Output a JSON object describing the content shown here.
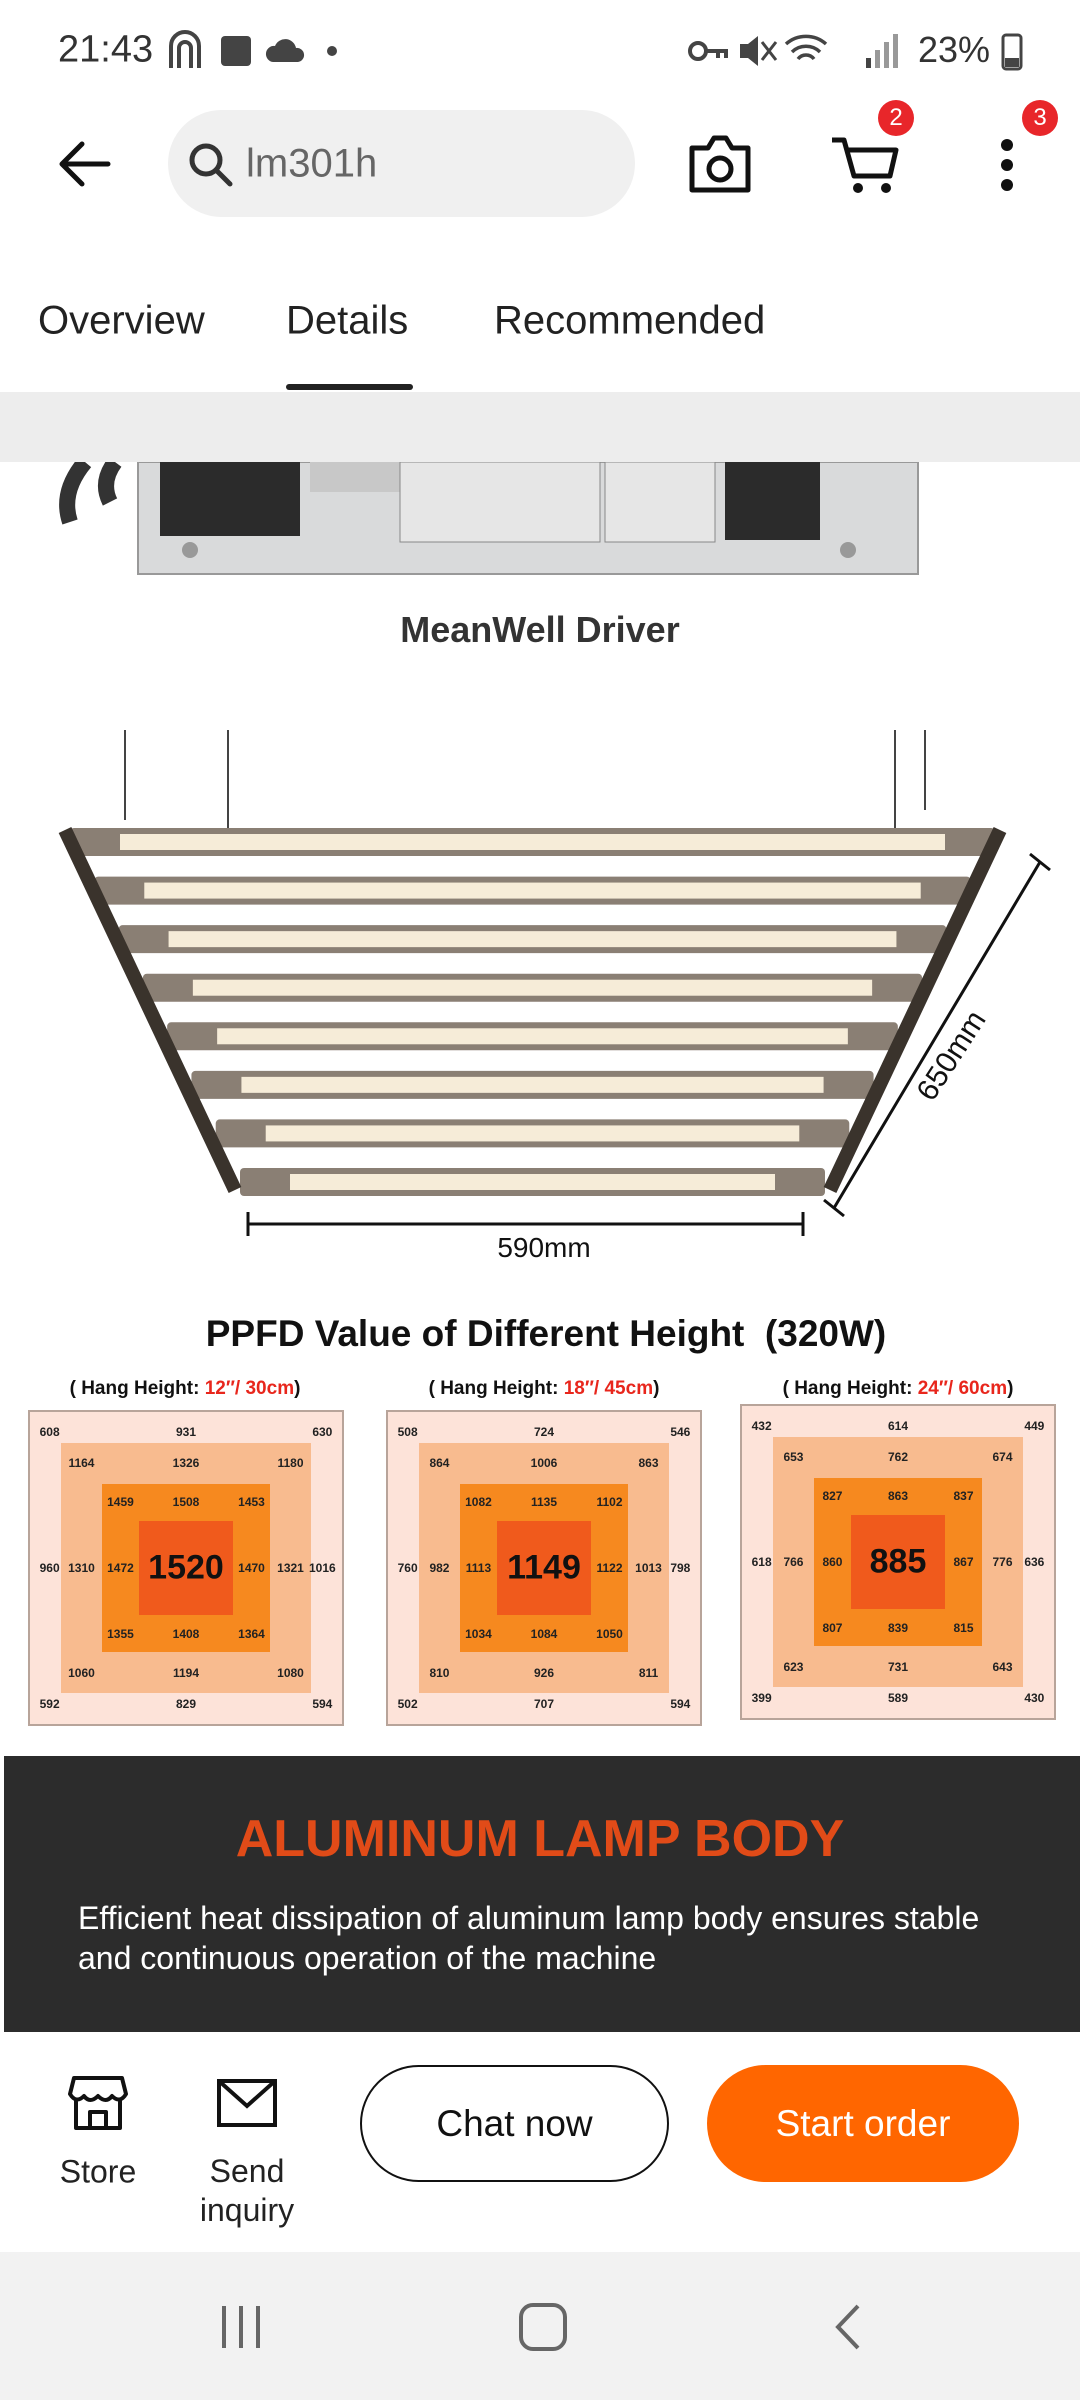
{
  "status_bar": {
    "time": "21:43",
    "battery": "23%"
  },
  "header": {
    "search_query": "lm301h",
    "cart_badge": "2",
    "menu_badge": "3"
  },
  "tabs": [
    "Overview",
    "Details",
    "Recommended"
  ],
  "content": {
    "driver_caption": "MeanWell Driver",
    "lamp_depth": "650mm",
    "lamp_width": "590mm",
    "ppfd": {
      "title": "PPFD Value of Different Height  (320W)",
      "panels": [
        {
          "caption_prefix": "( Hang Height: ",
          "caption_height": "12″/ 30cm",
          "caption_suffix": ")",
          "rings": [
            {
              "top": [
                608,
                931,
                630
              ],
              "left": 960,
              "right": 1016,
              "bottom": [
                592,
                829,
                594
              ]
            },
            {
              "top": [
                1164,
                1326,
                1180
              ],
              "left": 1310,
              "right": 1321,
              "bottom": [
                1060,
                1194,
                1080
              ]
            },
            {
              "top": [
                1459,
                1508,
                1453
              ],
              "left": 1472,
              "right": 1470,
              "bottom": [
                1355,
                1408,
                1364
              ]
            }
          ],
          "center": 1520
        },
        {
          "caption_prefix": "( Hang Height: ",
          "caption_height": "18″/ 45cm",
          "caption_suffix": ")",
          "rings": [
            {
              "top": [
                508,
                724,
                546
              ],
              "left": 760,
              "right": 798,
              "bottom": [
                502,
                707,
                594
              ]
            },
            {
              "top": [
                864,
                1006,
                863
              ],
              "left": 982,
              "right": 1013,
              "bottom": [
                810,
                926,
                811
              ]
            },
            {
              "top": [
                1082,
                1135,
                1102
              ],
              "left": 1113,
              "right": 1122,
              "bottom": [
                1034,
                1084,
                1050
              ]
            }
          ],
          "center": 1149
        },
        {
          "caption_prefix": "( Hang Height: ",
          "caption_height": "24″/ 60cm",
          "caption_suffix": ")",
          "rings": [
            {
              "top": [
                432,
                614,
                449
              ],
              "left": 618,
              "right": 636,
              "bottom": [
                399,
                589,
                430
              ]
            },
            {
              "top": [
                653,
                762,
                674
              ],
              "left": 766,
              "right": 776,
              "bottom": [
                623,
                731,
                643
              ]
            },
            {
              "top": [
                827,
                863,
                837
              ],
              "left": 860,
              "right": 867,
              "bottom": [
                807,
                839,
                815
              ]
            }
          ],
          "center": 885
        }
      ]
    },
    "feature": {
      "title": "ALUMINUM LAMP BODY",
      "description": "Efficient heat dissipation of aluminum lamp body ensures stable and continuous operation of the machine"
    }
  },
  "bottom_bar": {
    "store": "Store",
    "send_inquiry": "Send inquiry",
    "chat": "Chat now",
    "order": "Start order"
  }
}
